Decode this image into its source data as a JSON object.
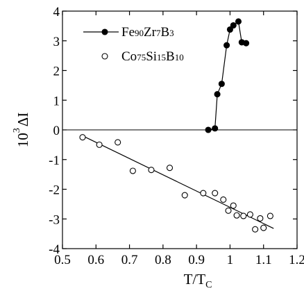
{
  "chart_data": {
    "type": "scatter",
    "xlabel": "T/T",
    "xlabel_sub": "C",
    "ylabel": "10",
    "ylabel_sup": "3",
    "ylabel_symbol": "ΔI",
    "xlim": [
      0.5,
      1.2
    ],
    "ylim": [
      -4,
      4
    ],
    "xticks": [
      0.5,
      0.6,
      0.7,
      0.8,
      0.9,
      1.0,
      1.1,
      1.2
    ],
    "xtick_labels": [
      "0.5",
      "0.6",
      "0.7",
      "0.8",
      "0.9",
      "1",
      "1.1",
      "1.2"
    ],
    "yticks": [
      4,
      3,
      2,
      1,
      0,
      -1,
      -2,
      -3,
      -4
    ],
    "ytick_labels": [
      "4",
      "3",
      "2",
      "1",
      "0",
      "-1",
      "-2",
      "-3",
      "-4"
    ],
    "zero_line": true,
    "grid": false,
    "legend_position": "top-left",
    "series": [
      {
        "name": "Fe90Zr7B3",
        "name_parts": [
          [
            "Fe",
            false
          ],
          [
            "90",
            true
          ],
          [
            "Zr",
            false
          ],
          [
            "7",
            true
          ],
          [
            "B",
            false
          ],
          [
            "3",
            true
          ]
        ],
        "marker": "filled-circle",
        "connected": true,
        "points": [
          [
            0.935,
            0.0
          ],
          [
            0.955,
            0.05
          ],
          [
            0.962,
            1.2
          ],
          [
            0.975,
            1.55
          ],
          [
            0.99,
            2.85
          ],
          [
            1.0,
            3.38
          ],
          [
            1.01,
            3.52
          ],
          [
            1.025,
            3.65
          ],
          [
            1.035,
            2.95
          ],
          [
            1.048,
            2.92
          ]
        ]
      },
      {
        "name": "Co75Si15B10",
        "name_parts": [
          [
            "Co",
            false
          ],
          [
            "75",
            true
          ],
          [
            "Si",
            false
          ],
          [
            "15",
            true
          ],
          [
            "B",
            false
          ],
          [
            "10",
            true
          ]
        ],
        "marker": "open-circle",
        "connected": false,
        "points": [
          [
            0.56,
            -0.25
          ],
          [
            0.61,
            -0.5
          ],
          [
            0.665,
            -0.42
          ],
          [
            0.71,
            -1.38
          ],
          [
            0.765,
            -1.35
          ],
          [
            0.82,
            -1.28
          ],
          [
            0.865,
            -2.2
          ],
          [
            0.92,
            -2.13
          ],
          [
            0.955,
            -2.13
          ],
          [
            0.98,
            -2.35
          ],
          [
            0.995,
            -2.72
          ],
          [
            1.01,
            -2.55
          ],
          [
            1.02,
            -2.88
          ],
          [
            1.04,
            -2.9
          ],
          [
            1.06,
            -2.85
          ],
          [
            1.075,
            -3.35
          ],
          [
            1.09,
            -2.98
          ],
          [
            1.1,
            -3.3
          ],
          [
            1.12,
            -2.9
          ]
        ],
        "fit_line": {
          "x": [
            0.56,
            1.13
          ],
          "y": [
            -0.2,
            -3.32
          ]
        }
      }
    ]
  }
}
